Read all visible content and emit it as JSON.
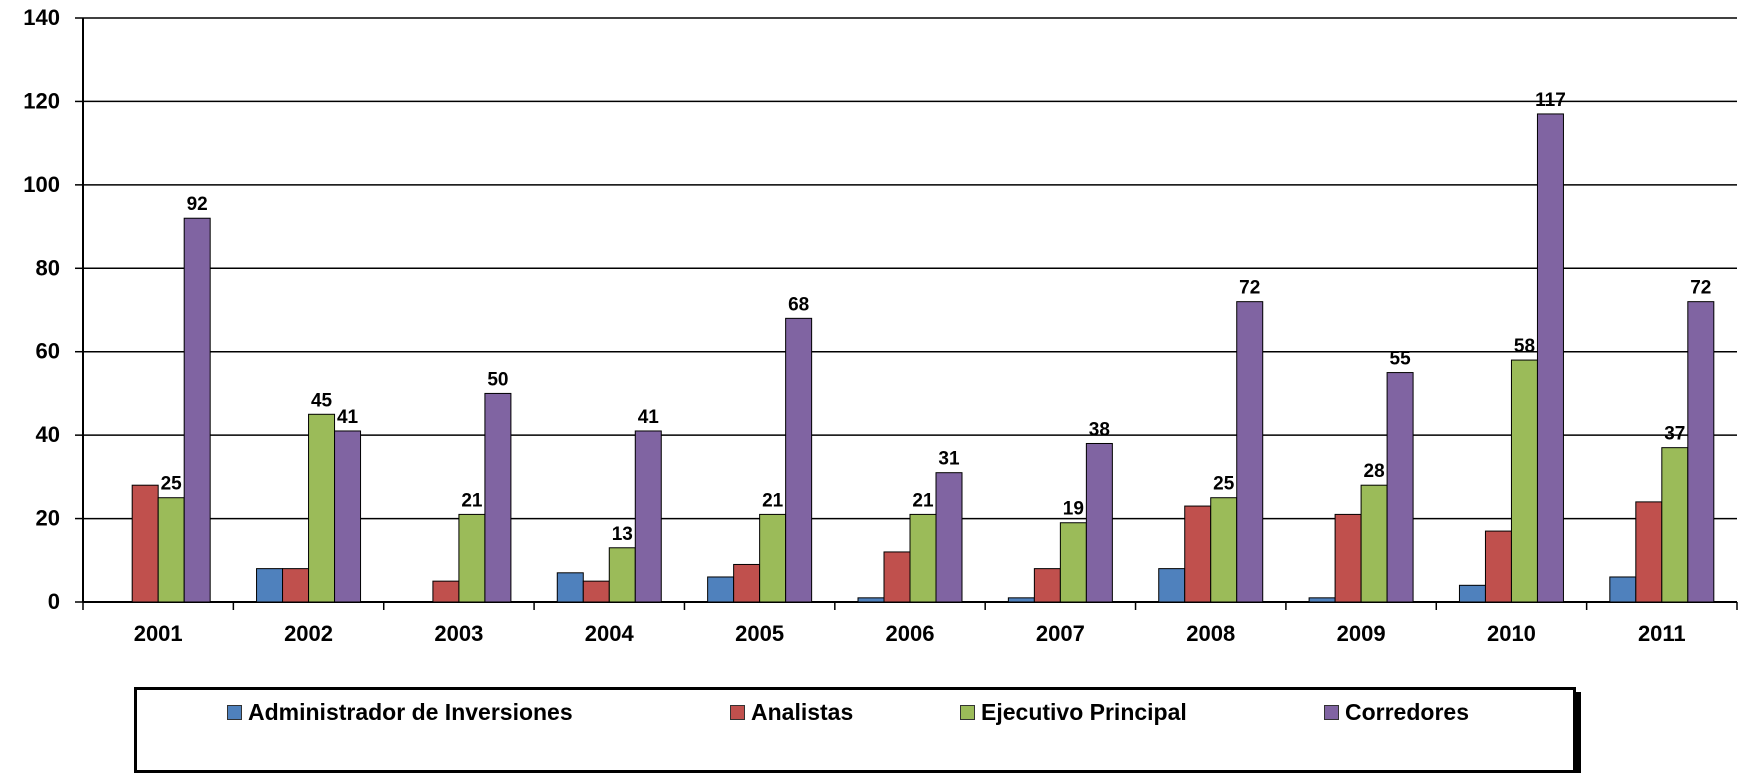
{
  "chart_data": {
    "type": "bar",
    "categories": [
      "2001",
      "2002",
      "2003",
      "2004",
      "2005",
      "2006",
      "2007",
      "2008",
      "2009",
      "2010",
      "2011"
    ],
    "series": [
      {
        "name": "Administrador de Inversiones",
        "color": "#4f81bd",
        "values": [
          0,
          8,
          0,
          7,
          6,
          1,
          1,
          8,
          1,
          4,
          6
        ],
        "labeled": false
      },
      {
        "name": "Analistas",
        "color": "#c0504d",
        "values": [
          28,
          8,
          5,
          5,
          9,
          12,
          8,
          23,
          21,
          17,
          24
        ],
        "labeled": false
      },
      {
        "name": "Ejecutivo Principal",
        "color": "#9bbb59",
        "values": [
          25,
          45,
          21,
          13,
          21,
          21,
          19,
          25,
          28,
          58,
          37
        ],
        "labeled": true
      },
      {
        "name": "Corredores",
        "color": "#8064a2",
        "values": [
          92,
          41,
          50,
          41,
          68,
          31,
          38,
          72,
          55,
          117,
          72
        ],
        "labeled": true
      }
    ],
    "y_ticks": [
      "0",
      "20",
      "40",
      "60",
      "80",
      "100",
      "120",
      "140"
    ],
    "ylim": [
      0,
      140
    ],
    "grid": true,
    "legend_position": "bottom"
  }
}
